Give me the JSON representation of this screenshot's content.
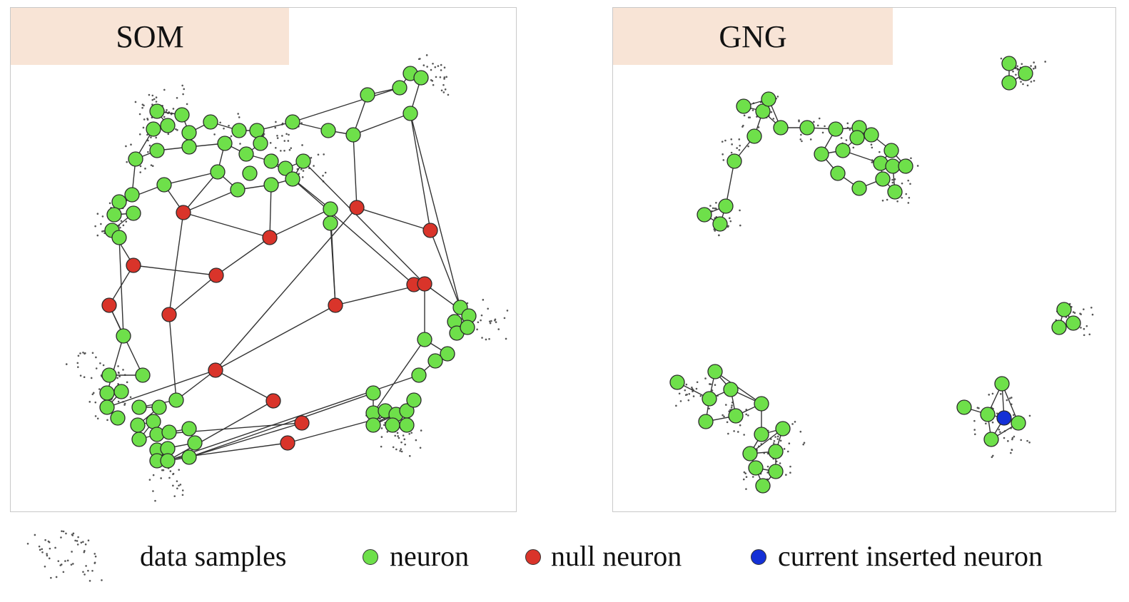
{
  "panels": {
    "som": {
      "title": "SOM"
    },
    "gng": {
      "title": "GNG"
    }
  },
  "legend": {
    "samples": "data  samples",
    "neuron": "neuron",
    "null_neuron": "null neuron",
    "inserted": "current inserted neuron"
  },
  "colors": {
    "neuron": "#6ee04a",
    "null_neuron": "#d9342a",
    "inserted": "#1430d6",
    "title_bg": "#f8e4d6",
    "edge": "#333333",
    "sample": "#555555"
  }
}
